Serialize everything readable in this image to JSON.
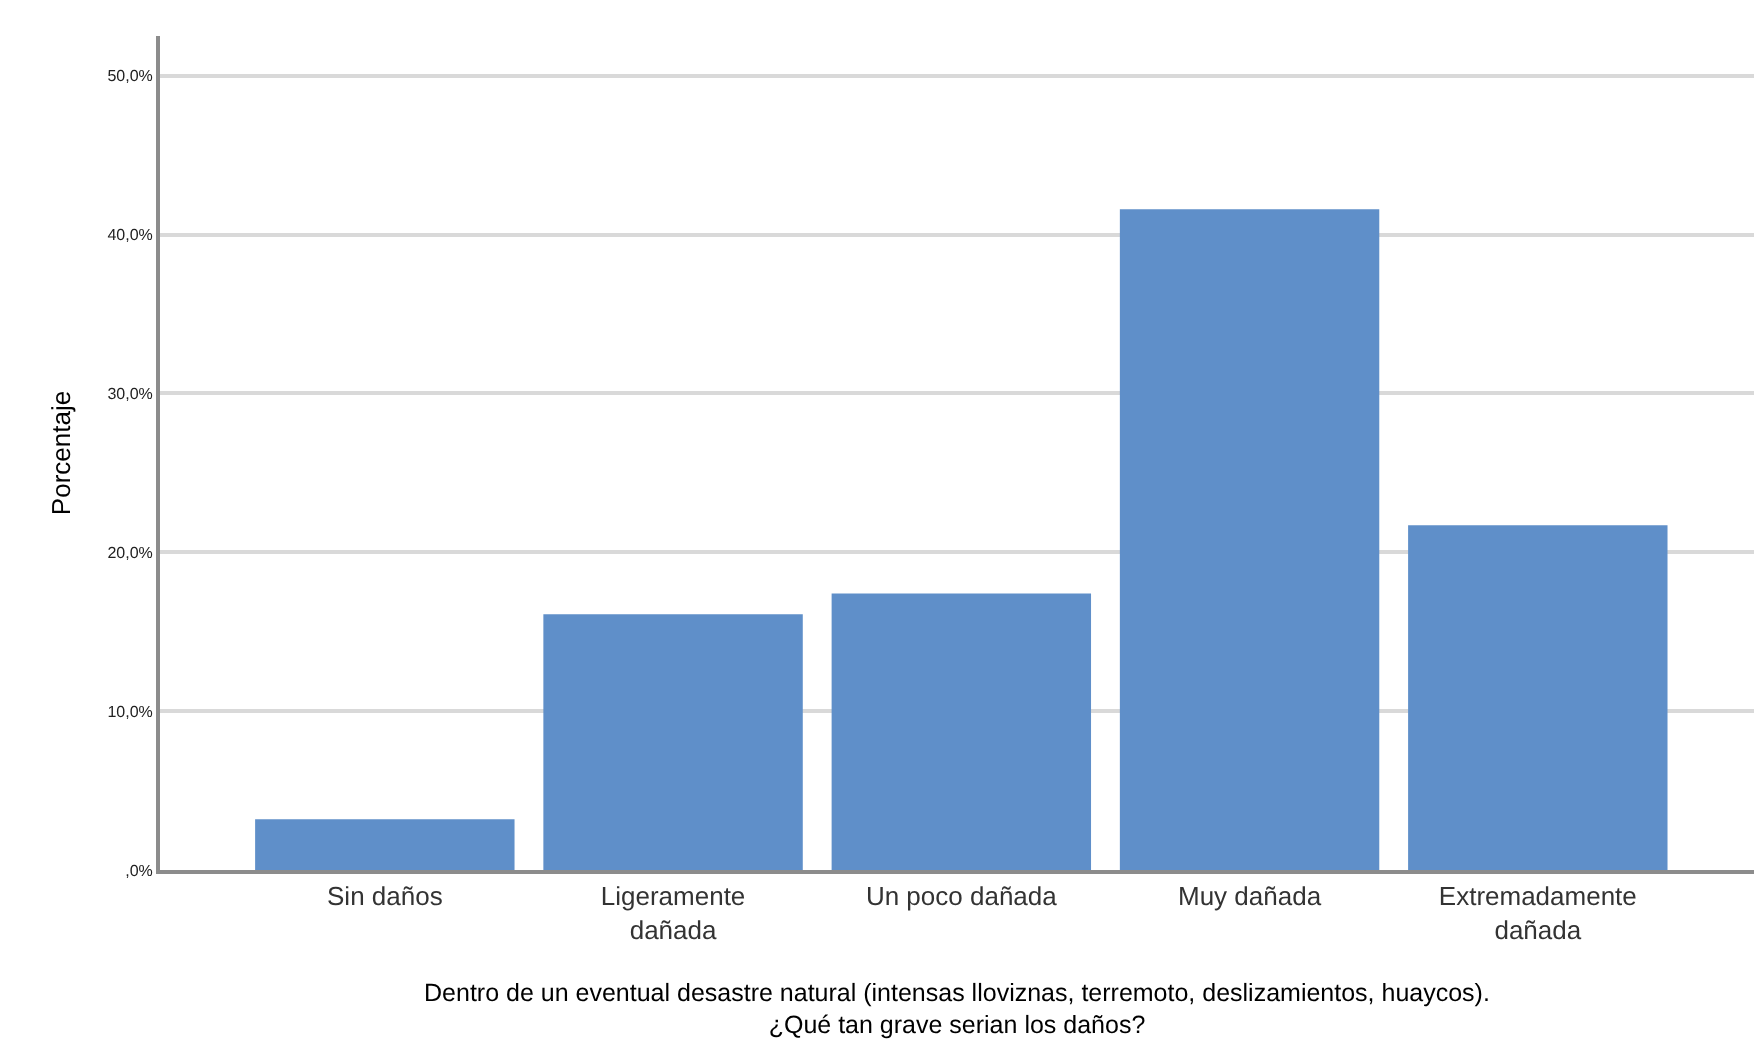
{
  "chart_data": {
    "type": "bar",
    "categories": [
      "Sin daños",
      "Ligeramente dañada",
      "Un poco dañada",
      "Muy dañada",
      "Extremadamente dañada"
    ],
    "values": [
      3.2,
      16.1,
      17.4,
      41.6,
      21.7
    ],
    "color": "#5f8fc9",
    "ylabel": "Porcentaje",
    "xlabel": "Dentro de un eventual desastre natural (intensas lloviznas, terremoto, deslizamientos, huaycos).\n¿Qué tan grave serian los daños?",
    "ylim": [
      0,
      52.5
    ],
    "yticks": [
      {
        "value": 0,
        "label": ",0%"
      },
      {
        "value": 10,
        "label": "10,0%"
      },
      {
        "value": 20,
        "label": "20,0%"
      },
      {
        "value": 30,
        "label": "30,0%"
      },
      {
        "value": 40,
        "label": "40,0%"
      },
      {
        "value": 50,
        "label": "50,0%"
      }
    ],
    "grid": "y",
    "legend": false
  }
}
